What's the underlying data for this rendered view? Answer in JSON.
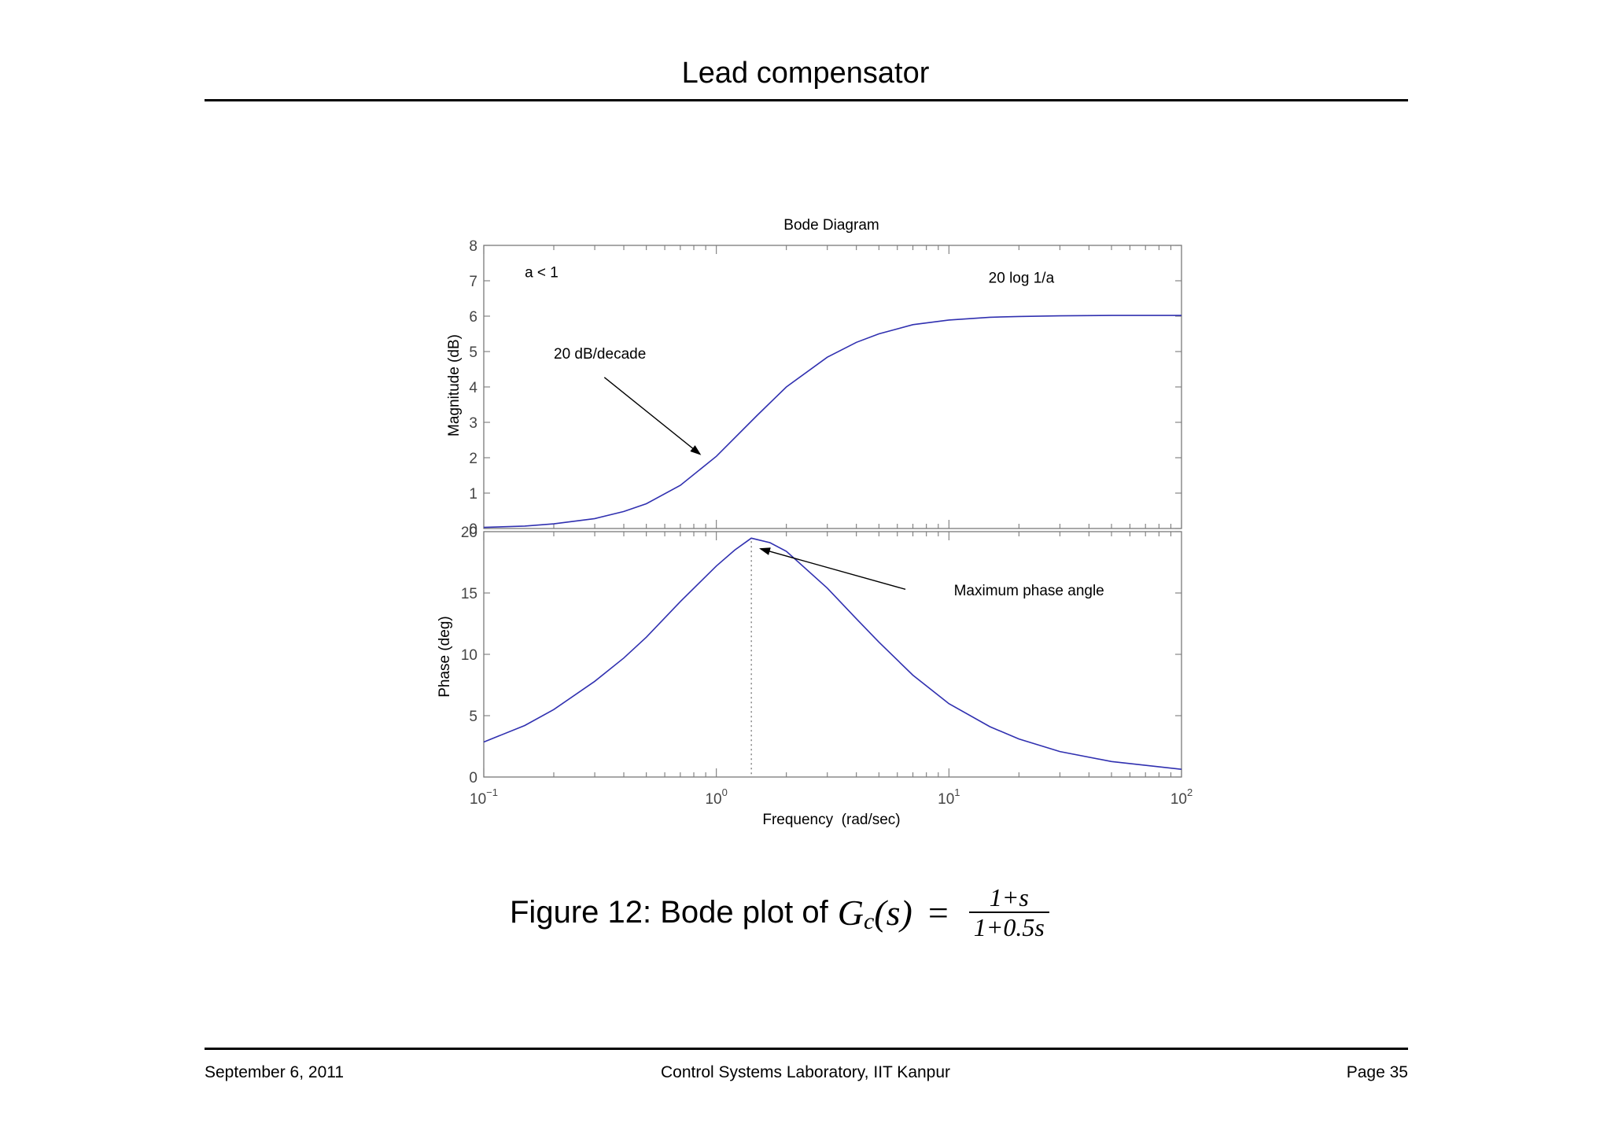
{
  "header": {
    "title": "Lead compensator"
  },
  "footer": {
    "date": "September 6, 2011",
    "center": "Control Systems Laboratory, IIT Kanpur",
    "page": "Page 35"
  },
  "caption": {
    "prefix": "Figure 12: Bode plot of",
    "lhs": "G",
    "lhs_sub": "c",
    "lhs_arg": "(s)",
    "equals": "=",
    "numerator": "1+s",
    "denominator": "1+0.5s"
  },
  "chart_data": {
    "type": "line",
    "title": "Bode Diagram",
    "xlabel": "Frequency  (rad/sec)",
    "xscale": "log",
    "xlim": [
      0.1,
      100
    ],
    "x_ticks": [
      {
        "base": "10",
        "exp": "−1"
      },
      {
        "base": "10",
        "exp": "0"
      },
      {
        "base": "10",
        "exp": "1"
      },
      {
        "base": "10",
        "exp": "2"
      }
    ],
    "line_color": "#3030b0",
    "panels": [
      {
        "name": "magnitude",
        "ylabel": "Magnitude (dB)",
        "ylim": [
          0,
          8
        ],
        "y_ticks": [
          "0",
          "1",
          "2",
          "3",
          "4",
          "5",
          "6",
          "7",
          "8"
        ],
        "x": [
          0.1,
          0.15,
          0.2,
          0.3,
          0.4,
          0.5,
          0.7,
          1.0,
          1.5,
          2.0,
          3.0,
          4.0,
          5.0,
          7.0,
          10,
          15,
          20,
          30,
          50,
          100
        ],
        "y": [
          0.03,
          0.07,
          0.13,
          0.28,
          0.48,
          0.7,
          1.22,
          2.04,
          3.2,
          4.0,
          4.84,
          5.26,
          5.5,
          5.76,
          5.89,
          5.97,
          5.99,
          6.01,
          6.02,
          6.02
        ]
      },
      {
        "name": "phase",
        "ylabel": "Phase (deg)",
        "ylim": [
          0,
          20
        ],
        "y_ticks": [
          "0",
          "5",
          "10",
          "15",
          "20"
        ],
        "x": [
          0.1,
          0.15,
          0.2,
          0.3,
          0.4,
          0.5,
          0.7,
          1.0,
          1.2,
          1.414,
          1.7,
          2.0,
          3.0,
          4.0,
          5.0,
          7.0,
          10,
          15,
          20,
          30,
          50,
          100
        ],
        "y": [
          2.85,
          4.2,
          5.5,
          7.8,
          9.7,
          11.4,
          14.3,
          17.2,
          18.5,
          19.47,
          19.1,
          18.4,
          15.4,
          12.9,
          11.0,
          8.3,
          5.98,
          4.1,
          3.1,
          2.08,
          1.26,
          0.63
        ],
        "max_x": 1.414
      }
    ],
    "annotations": [
      {
        "panel": "magnitude",
        "text": "a < 1",
        "x": 0.15,
        "y": 7.1
      },
      {
        "panel": "magnitude",
        "text": "20 log 1/a",
        "x": 14.8,
        "y": 6.95
      },
      {
        "panel": "magnitude",
        "text": "20 dB/decade",
        "x": 0.2,
        "y": 4.8,
        "arrow_from": [
          0.33,
          4.27
        ],
        "arrow_to": [
          0.85,
          2.1
        ]
      },
      {
        "panel": "phase",
        "text": "Maximum phase angle",
        "x": 10.5,
        "y": 14.8,
        "arrow_from": [
          6.5,
          15.3
        ],
        "arrow_to": [
          1.55,
          18.6
        ]
      }
    ]
  }
}
